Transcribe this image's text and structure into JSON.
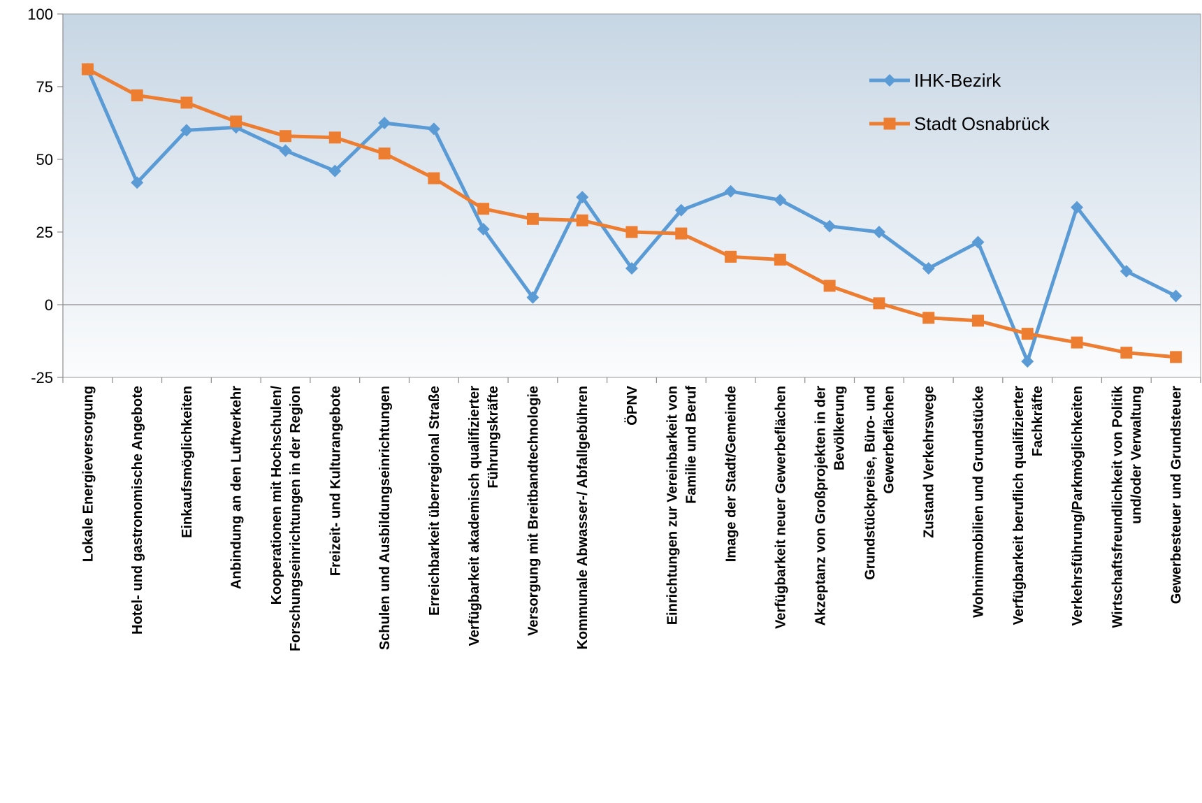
{
  "chart_data": {
    "type": "line",
    "title": "",
    "xlabel": "",
    "ylabel": "",
    "ylim": [
      -25,
      100
    ],
    "yticks": [
      "100",
      "75",
      "50",
      "25",
      "0",
      "-25"
    ],
    "ytick_values": [
      100,
      75,
      50,
      25,
      0,
      -25
    ],
    "grid": false,
    "legend_position": "top-right",
    "categories": [
      [
        "Lokale Energieversorgung"
      ],
      [
        "Hotel- und gastronomische Angebote"
      ],
      [
        "Einkaufsmöglichkeiten"
      ],
      [
        "Anbindung an den Luftverkehr"
      ],
      [
        "Kooperationen mit Hochschulen/",
        "Forschungseinrichtungen in der Region"
      ],
      [
        "Freizeit- und Kulturangebote"
      ],
      [
        "Schulen und Ausbildungseinrichtungen"
      ],
      [
        "Erreichbarkeit überregional Straße"
      ],
      [
        "Verfügbarkeit akademisch qualifizierter",
        "Führungskräfte"
      ],
      [
        "Versorgung mit Breitbandtechnologie"
      ],
      [
        "Kommunale Abwasser-/ Abfallgebühren"
      ],
      [
        "ÖPNV"
      ],
      [
        "Einrichtungen zur Vereinbarkeit von",
        "Familie und Beruf"
      ],
      [
        "Image der Stadt/Gemeinde"
      ],
      [
        "Verfügbarkeit neuer Gewerbeflächen"
      ],
      [
        "Akzeptanz von Großprojekten in der",
        "Bevölkerung"
      ],
      [
        "Grundstückpreise, Büro- und",
        "Gewerbeflächen"
      ],
      [
        "Zustand Verkehrswege"
      ],
      [
        "Wohnimmobilien und Grundstücke"
      ],
      [
        "Verfügbarkeit beruflich qualifizierter",
        "Fachkräfte"
      ],
      [
        "Verkehrsführung/Parkmöglichkeiten"
      ],
      [
        "Wirtschaftsfreundlichkeit von Politik",
        "und/oder Verwaltung"
      ],
      [
        "Gewerbesteuer und Grundsteuer"
      ]
    ],
    "series": [
      {
        "name": "IHK-Bezirk",
        "color": "#5B9BD5",
        "marker": "diamond",
        "values": [
          81,
          42,
          60,
          61,
          53,
          46,
          62.5,
          60.5,
          26,
          2.5,
          37,
          12.5,
          32.5,
          39,
          36,
          27,
          25,
          12.5,
          21.5,
          -19.5,
          33.5,
          11.5,
          3
        ]
      },
      {
        "name": "Stadt Osnabrück",
        "color": "#ED7D31",
        "marker": "square",
        "values": [
          81,
          72,
          69.5,
          63,
          58,
          57.5,
          52,
          43.5,
          33,
          29.5,
          29,
          25,
          24.5,
          16.5,
          15.5,
          6.5,
          0.5,
          -4.5,
          -5.5,
          -10,
          -13,
          -16.5,
          -18
        ]
      }
    ]
  }
}
